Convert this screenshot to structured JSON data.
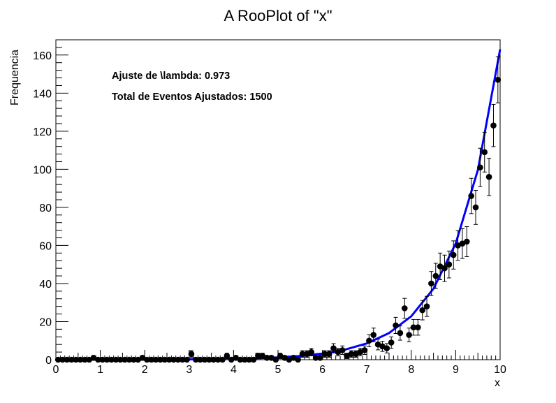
{
  "chart_data": {
    "type": "scatter",
    "title": "A RooPlot of \"x\"",
    "xlabel": "x",
    "ylabel": "Frequencia",
    "xlim": [
      0,
      10
    ],
    "ylim": [
      0,
      168
    ],
    "xticks": [
      0,
      1,
      2,
      3,
      4,
      5,
      6,
      7,
      8,
      9,
      10
    ],
    "yticks": [
      0,
      20,
      40,
      60,
      80,
      100,
      120,
      140,
      160
    ],
    "grid": false,
    "annotations": [
      "Ajuste de \\lambda: 0.973",
      "Total de Eventos Ajustados: 1500"
    ],
    "series": [
      {
        "kind": "data-points-with-errors",
        "color": "#000000",
        "x": [
          0.05,
          0.15,
          0.25,
          0.35,
          0.45,
          0.55,
          0.65,
          0.75,
          0.85,
          0.95,
          1.05,
          1.15,
          1.25,
          1.35,
          1.45,
          1.55,
          1.65,
          1.75,
          1.85,
          1.95,
          2.05,
          2.15,
          2.25,
          2.35,
          2.45,
          2.55,
          2.65,
          2.75,
          2.85,
          2.95,
          3.05,
          3.15,
          3.25,
          3.35,
          3.45,
          3.55,
          3.65,
          3.75,
          3.85,
          3.95,
          4.05,
          4.15,
          4.25,
          4.35,
          4.45,
          4.55,
          4.65,
          4.75,
          4.85,
          4.95,
          5.05,
          5.15,
          5.25,
          5.35,
          5.45,
          5.55,
          5.65,
          5.75,
          5.85,
          5.95,
          6.05,
          6.15,
          6.25,
          6.35,
          6.45,
          6.55,
          6.65,
          6.75,
          6.85,
          6.95,
          7.05,
          7.15,
          7.25,
          7.35,
          7.45,
          7.55,
          7.65,
          7.75,
          7.85,
          7.95,
          8.05,
          8.15,
          8.25,
          8.35,
          8.45,
          8.55,
          8.65,
          8.75,
          8.85,
          8.95,
          9.05,
          9.15,
          9.25,
          9.35,
          9.45,
          9.55,
          9.65,
          9.75,
          9.85,
          9.95
        ],
        "y": [
          0,
          0,
          0,
          0,
          0,
          0,
          0,
          0,
          1,
          0,
          0,
          0,
          0,
          0,
          0,
          0,
          0,
          0,
          0,
          1,
          0,
          0,
          0,
          0,
          0,
          0,
          0,
          0,
          0,
          0,
          3,
          0,
          0,
          0,
          0,
          0,
          0,
          0,
          2,
          0,
          1,
          0,
          0,
          0,
          0,
          2,
          2,
          1,
          1,
          0,
          2,
          1,
          0,
          1,
          0,
          3,
          3,
          4,
          1,
          1,
          3,
          3,
          6,
          4,
          5,
          2,
          3,
          3,
          4,
          5,
          10,
          13,
          8,
          7,
          6,
          9,
          18,
          14,
          27,
          13,
          17,
          17,
          26,
          28,
          40,
          44,
          49,
          48,
          50,
          55,
          60,
          61,
          62,
          86,
          80,
          101,
          109,
          96,
          123,
          147
        ]
      },
      {
        "kind": "pdf-curve",
        "name": "",
        "color": "#0000ff",
        "function": "exponential",
        "lambda": 0.973,
        "x": [
          0,
          0.5,
          1,
          1.5,
          2,
          2.5,
          3,
          3.5,
          4,
          4.5,
          5,
          5.5,
          6,
          6.5,
          7,
          7.5,
          8,
          8.5,
          9,
          9.5,
          10
        ],
        "y": [
          0.009,
          0.015,
          0.024,
          0.039,
          0.063,
          0.102,
          0.168,
          0.275,
          0.448,
          0.733,
          1.2,
          1.96,
          3.2,
          5.23,
          8.55,
          14.0,
          22.8,
          37.3,
          61.0,
          99.7,
          163.0
        ]
      }
    ]
  }
}
